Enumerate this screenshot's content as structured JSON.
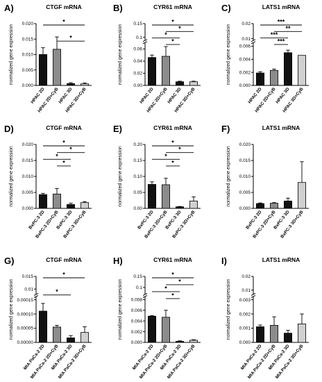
{
  "colors": {
    "black": "#111111",
    "dark_gray": "#555555",
    "mid_gray": "#8c8c8c",
    "light_gray": "#d0d0d0",
    "axis": "#000000"
  },
  "chart_data": [
    {
      "type": "bar",
      "panel_label": "A)",
      "title": "CTGF mRNA",
      "ylabel": "normalized gene expression",
      "categories": [
        "HPAC 2D",
        "HPAC 2D+CyB",
        "HPAC 3D",
        "HPAC 3D+CyB"
      ],
      "values": [
        0.01,
        0.0117,
        0.0006,
        0.0005
      ],
      "errors": [
        0.0022,
        0.004,
        0.0003,
        0.0003
      ],
      "colors": [
        "#111111",
        "#8c8c8c",
        "#111111",
        "#d0d0d0"
      ],
      "ylim": [
        0,
        0.02
      ],
      "yticks": [
        0,
        0.005,
        0.01,
        0.015,
        0.02
      ],
      "yticklabels": [
        "0.000",
        "0.005",
        "0.010",
        "0.015",
        "0.020"
      ],
      "significance": [
        {
          "from": 0,
          "to": 3,
          "label": "*"
        },
        {
          "from": 1,
          "to": 3,
          "label": "*"
        }
      ]
    },
    {
      "type": "bar",
      "panel_label": "B)",
      "title": "CYR61 mRNA",
      "ylabel": "normalized gene expression",
      "categories": [
        "HPAC 2D",
        "HPAC 2D+CyB",
        "HPAC 3D",
        "HPAC 3D+CyB"
      ],
      "values": [
        0.046,
        0.048,
        0.006,
        0.006
      ],
      "errors": [
        0.004,
        0.016,
        0.001,
        0.001
      ],
      "colors": [
        "#111111",
        "#8c8c8c",
        "#111111",
        "#d0d0d0"
      ],
      "ylim": [
        0,
        0.15
      ],
      "yticks": [
        0,
        0.02,
        0.04,
        0.06,
        0.1,
        0.15
      ],
      "yticklabels": [
        "0.00",
        "0.02",
        "0.04",
        "0.06",
        "0.1",
        "0.15"
      ],
      "axis_break": [
        0.07,
        0.09
      ],
      "significance": [
        {
          "from": 0,
          "to": 3,
          "label": "*"
        },
        {
          "from": 1,
          "to": 3,
          "label": "*"
        },
        {
          "from": 0,
          "to": 2,
          "label": "*"
        },
        {
          "from": 1,
          "to": 2,
          "label": "*"
        }
      ]
    },
    {
      "type": "bar",
      "panel_label": "C)",
      "title": "LATS1 mRNA",
      "ylabel": "normalized gene expression",
      "categories": [
        "HPAC 2D",
        "HPAC 2D+CyB",
        "HPAC 3D",
        "HPAC 3D+CyB"
      ],
      "values": [
        0.0019,
        0.0023,
        0.005,
        0.0046
      ],
      "errors": [
        0.0002,
        0.0002,
        0.0004,
        0.0
      ],
      "colors": [
        "#111111",
        "#8c8c8c",
        "#111111",
        "#d0d0d0"
      ],
      "ylim": [
        0,
        0.02
      ],
      "yticks": [
        0,
        0.002,
        0.004,
        0.006,
        0.01,
        0.02
      ],
      "yticklabels": [
        "0.000",
        "0.002",
        "0.004",
        "0.006",
        "0.01",
        "0.02"
      ],
      "axis_break": [
        0.0065,
        0.009
      ],
      "significance": [
        {
          "from": 0,
          "to": 3,
          "label": "***"
        },
        {
          "from": 1,
          "to": 3,
          "label": "**"
        },
        {
          "from": 0,
          "to": 2,
          "label": "***"
        },
        {
          "from": 1,
          "to": 2,
          "label": "***"
        }
      ]
    },
    {
      "type": "bar",
      "panel_label": "D)",
      "title": "CTGF mRNA",
      "ylabel": "normalized gene expression",
      "categories": [
        "BxPC-3 2D",
        "BxPC-3 2D+CyB",
        "BxPC-3 3D",
        "BxPC-3 3D+CyB"
      ],
      "values": [
        0.0043,
        0.0045,
        0.0012,
        0.0018
      ],
      "errors": [
        0.0004,
        0.0017,
        0.0004,
        0.0003
      ],
      "colors": [
        "#111111",
        "#8c8c8c",
        "#111111",
        "#d0d0d0"
      ],
      "ylim": [
        0,
        0.02
      ],
      "yticks": [
        0,
        0.005,
        0.01,
        0.015,
        0.02
      ],
      "yticklabels": [
        "0.000",
        "0.005",
        "0.010",
        "0.015",
        "0.020"
      ],
      "significance": [
        {
          "from": 0,
          "to": 3,
          "label": "*"
        },
        {
          "from": 1,
          "to": 3,
          "label": "*"
        },
        {
          "from": 0,
          "to": 2,
          "label": "*"
        },
        {
          "from": 1,
          "to": 2,
          "label": "*"
        }
      ]
    },
    {
      "type": "bar",
      "panel_label": "E)",
      "title": "CYR61 mRNA",
      "ylabel": "normalized gene expression",
      "categories": [
        "BxPC-3 2D",
        "BxPC-3 2D+CyB",
        "BxPC-3 3D",
        "BxPC-3 3D+CyB"
      ],
      "values": [
        0.075,
        0.074,
        0.005,
        0.023
      ],
      "errors": [
        0.008,
        0.02,
        0.001,
        0.013
      ],
      "colors": [
        "#111111",
        "#8c8c8c",
        "#111111",
        "#d0d0d0"
      ],
      "ylim": [
        0,
        0.2
      ],
      "yticks": [
        0,
        0.05,
        0.1,
        0.15,
        0.2
      ],
      "yticklabels": [
        "0.00",
        "0.05",
        "0.10",
        "0.15",
        "0.20"
      ],
      "significance": [
        {
          "from": 0,
          "to": 3,
          "label": "*"
        },
        {
          "from": 1,
          "to": 3,
          "label": "*"
        },
        {
          "from": 0,
          "to": 2,
          "label": "*"
        },
        {
          "from": 1,
          "to": 2,
          "label": "*"
        }
      ]
    },
    {
      "type": "bar",
      "panel_label": "F)",
      "title": "LATS1 mRNA",
      "ylabel": "normalized gene expression",
      "categories": [
        "BxPC-3 2D",
        "BxPC-3 2D+CyB",
        "BxPC-3 3D",
        "BxPC-3 3D+CyB"
      ],
      "values": [
        0.0015,
        0.0016,
        0.0023,
        0.0081
      ],
      "errors": [
        0.0002,
        0.0002,
        0.0009,
        0.0065
      ],
      "colors": [
        "#111111",
        "#8c8c8c",
        "#111111",
        "#d0d0d0"
      ],
      "ylim": [
        0,
        0.02
      ],
      "yticks": [
        0,
        0.005,
        0.01,
        0.015,
        0.02
      ],
      "yticklabels": [
        "0.000",
        "0.005",
        "0.010",
        "0.015",
        "0.020"
      ],
      "significance": []
    },
    {
      "type": "bar",
      "panel_label": "G)",
      "title": "CTGF mRNA",
      "ylabel": "normalized gene expression",
      "categories": [
        "MIA PaCa-2 2D",
        "MIA PaCa-2 2D+CyB",
        "MIA PaCa-2 3D",
        "MIA PaCa-2 3D+CyB"
      ],
      "values": [
        0.00011,
        5.4e-05,
        1.6e-05,
        3.5e-05
      ],
      "errors": [
        2.7e-05,
        6e-06,
        8e-06,
        2e-05
      ],
      "colors": [
        "#111111",
        "#8c8c8c",
        "#111111",
        "#d0d0d0"
      ],
      "ylim": [
        0,
        0.015
      ],
      "yticks": [
        0,
        5e-05,
        0.0001,
        0.00015,
        0.01,
        0.015
      ],
      "yticklabels": [
        "0.00000",
        "0.00005",
        "0.00010",
        "0.00015",
        "0.01",
        "0.015"
      ],
      "axis_break": [
        0.00016,
        0.008
      ],
      "significance": [
        {
          "from": 0,
          "to": 3,
          "label": "*"
        },
        {
          "from": 0,
          "to": 2,
          "label": "*"
        }
      ]
    },
    {
      "type": "bar",
      "panel_label": "H)",
      "title": "CYR61 mRNA",
      "ylabel": "normalized gene expression",
      "categories": [
        "MIA PaCa-2 2D",
        "MIA PaCa-2 2D+CyB",
        "MIA PaCa-2 3D",
        "MIA PaCa-2 3D+CyB"
      ],
      "values": [
        0.0049,
        0.0047,
        0.0002,
        0.0004
      ],
      "errors": [
        0.0001,
        0.0013,
        0.0001,
        0.0001
      ],
      "colors": [
        "#111111",
        "#8c8c8c",
        "#111111",
        "#d0d0d0"
      ],
      "ylim": [
        0,
        0.15
      ],
      "yticks": [
        0,
        0.002,
        0.004,
        0.006,
        0.008,
        0.1,
        0.15
      ],
      "yticklabels": [
        "0.000",
        "0.002",
        "0.004",
        "0.006",
        "0.008",
        "0.1",
        "0.15"
      ],
      "axis_break": [
        0.0085,
        0.07
      ],
      "significance": [
        {
          "from": 0,
          "to": 3,
          "label": "*"
        },
        {
          "from": 1,
          "to": 3,
          "label": "*"
        },
        {
          "from": 0,
          "to": 2,
          "label": "*"
        },
        {
          "from": 1,
          "to": 2,
          "label": "*"
        }
      ]
    },
    {
      "type": "bar",
      "panel_label": "I)",
      "title": "LATS1 mRNA",
      "ylabel": "normalized gene expression",
      "categories": [
        "MIA PaCa-2 2D",
        "MIA PaCa-2 2D+CyB",
        "MIA PaCa-2 3D",
        "MIA PaCa-2 3D+CyB"
      ],
      "values": [
        0.0011,
        0.0012,
        0.00065,
        0.0013
      ],
      "errors": [
        0.00012,
        0.0006,
        0.0002,
        0.0007
      ],
      "colors": [
        "#111111",
        "#8c8c8c",
        "#111111",
        "#d0d0d0"
      ],
      "ylim": [
        0,
        0.02
      ],
      "yticks": [
        0,
        0.001,
        0.002,
        0.003,
        0.01,
        0.02
      ],
      "yticklabels": [
        "0.000",
        "0.001",
        "0.002",
        "0.003",
        "0.01",
        "0.02"
      ],
      "axis_break": [
        0.0032,
        0.007
      ],
      "significance": []
    }
  ]
}
